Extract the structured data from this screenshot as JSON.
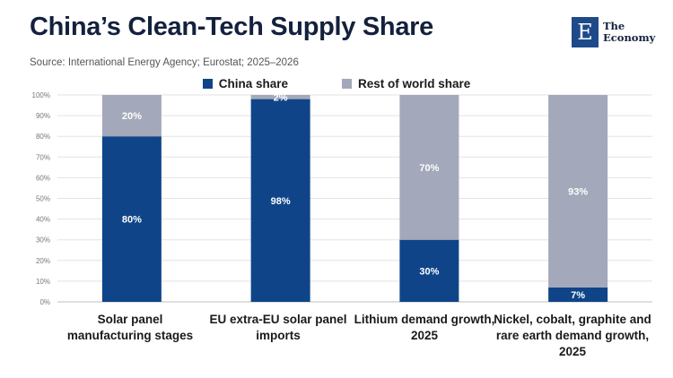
{
  "header": {
    "title": "China’s Clean-Tech Supply Share",
    "source": "Source: International Energy Agency; Eurostat; 2025–2026"
  },
  "logo": {
    "mark": "E",
    "line1": "The",
    "line2": "Economy"
  },
  "chart_data": {
    "type": "bar",
    "stacked": true,
    "categories": [
      "Solar panel manufacturing stages",
      "EU extra-EU solar panel imports",
      "Lithium demand growth, 2025",
      "Nickel, cobalt, graphite and rare earth demand growth, 2025"
    ],
    "series": [
      {
        "name": "China share",
        "values": [
          80,
          98,
          30,
          7
        ],
        "labels": [
          "80%",
          "98%",
          "30%",
          "7%"
        ],
        "color": "#0f4588"
      },
      {
        "name": "Rest of world share",
        "values": [
          20,
          2,
          70,
          93
        ],
        "labels": [
          "20%",
          "2%",
          "70%",
          "93%"
        ],
        "color": "#a3a8ba"
      }
    ],
    "yticks": [
      "0%",
      "10%",
      "20%",
      "30%",
      "40%",
      "50%",
      "60%",
      "70%",
      "80%",
      "90%",
      "100%"
    ],
    "ylim": [
      0,
      100
    ],
    "grid": true,
    "legend": "top-center"
  }
}
